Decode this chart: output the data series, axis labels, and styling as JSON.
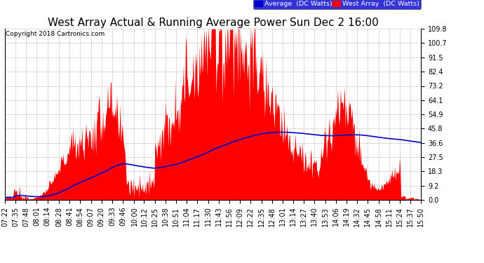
{
  "title": "West Array Actual & Running Average Power Sun Dec 2 16:00",
  "copyright": "Copyright 2018 Cartronics.com",
  "yticks": [
    0.0,
    9.2,
    18.3,
    27.5,
    36.6,
    45.8,
    54.9,
    64.1,
    73.2,
    82.4,
    91.5,
    100.7,
    109.8
  ],
  "ylim": [
    0.0,
    109.8
  ],
  "legend_labels": [
    "Average  (DC Watts)",
    "West Array  (DC Watts)"
  ],
  "background_color": "#ffffff",
  "grid_color": "#aaaaaa",
  "area_color": "#ff0000",
  "line_color": "#0000cc",
  "title_fontsize": 11,
  "tick_fontsize": 7,
  "xtick_labels": [
    "07:22",
    "07:35",
    "07:48",
    "08:01",
    "08:14",
    "08:28",
    "08:41",
    "08:54",
    "09:07",
    "09:20",
    "09:33",
    "09:46",
    "10:00",
    "10:12",
    "10:25",
    "10:38",
    "10:51",
    "11:04",
    "11:17",
    "11:30",
    "11:43",
    "11:56",
    "12:09",
    "12:22",
    "12:35",
    "12:48",
    "13:01",
    "13:14",
    "13:27",
    "13:40",
    "13:53",
    "14:06",
    "14:19",
    "14:32",
    "14:45",
    "14:58",
    "15:11",
    "15:24",
    "15:37",
    "15:50"
  ]
}
